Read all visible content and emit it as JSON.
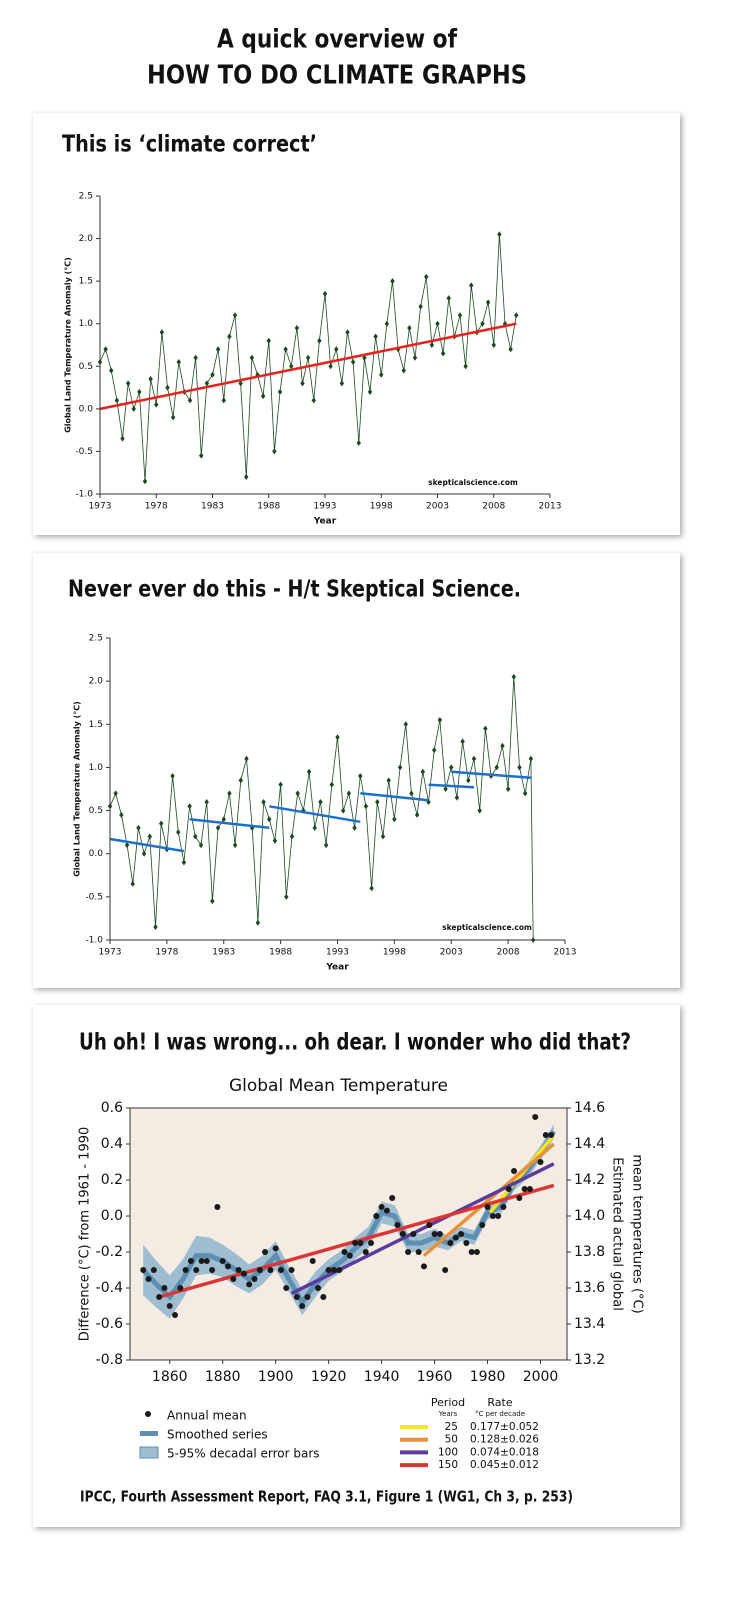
{
  "header": {
    "line1": "A quick overview of",
    "line2": "HOW TO DO CLIMATE GRAPHS"
  },
  "panel_captions": [
    "This is ‘climate correct’",
    "Never ever do this - H/t Skeptical Science.",
    "Uh oh! I was wrong... oh dear. I wonder who did that?"
  ],
  "citation": "IPCC, Fourth Assessment Report, FAQ 3.1, Figure 1 (WG1, Ch 3, p. 253)",
  "chart_data": [
    {
      "type": "line",
      "xlabel": "Year",
      "ylabel": "Global Land Temperature Anomaly (°C)",
      "annotation": "skepticalscience.com",
      "xlim": [
        1973,
        2013
      ],
      "xticks": [
        1973,
        1978,
        1983,
        1988,
        1993,
        1998,
        2003,
        2008,
        2013
      ],
      "ylim": [
        -1.0,
        2.5
      ],
      "yticks": [
        {
          "value": -1.0,
          "label": "-1.0"
        },
        -0.5,
        {
          "value": 0,
          "label": "0.0"
        },
        0.5,
        {
          "value": 1.0,
          "label": "1.0"
        },
        1.5,
        {
          "value": 2.0,
          "label": "2.0"
        },
        2.5
      ],
      "x": [
        1973,
        1973.5,
        1974,
        1974.5,
        1975,
        1975.5,
        1976,
        1976.5,
        1977,
        1977.5,
        1978,
        1978.5,
        1979,
        1979.5,
        1980,
        1980.5,
        1981,
        1981.5,
        1982,
        1982.5,
        1983,
        1983.5,
        1984,
        1984.5,
        1985,
        1985.5,
        1986,
        1986.5,
        1987,
        1987.5,
        1988,
        1988.5,
        1989,
        1989.5,
        1990,
        1990.5,
        1991,
        1991.5,
        1992,
        1992.5,
        1993,
        1993.5,
        1994,
        1994.5,
        1995,
        1995.5,
        1996,
        1996.5,
        1997,
        1997.5,
        1998,
        1998.5,
        1999,
        1999.5,
        2000,
        2000.5,
        2001,
        2001.5,
        2002,
        2002.5,
        2003,
        2003.5,
        2004,
        2004.5,
        2005,
        2005.5,
        2006,
        2006.5,
        2007,
        2007.5,
        2008,
        2008.5,
        2009,
        2009.5,
        2010
      ],
      "series": [
        {
          "style": "markers-line",
          "color": "#1c4a1f",
          "values": [
            0.55,
            0.7,
            0.45,
            0.1,
            -0.35,
            0.3,
            0.0,
            0.2,
            -0.85,
            0.35,
            0.05,
            0.9,
            0.25,
            -0.1,
            0.55,
            0.2,
            0.1,
            0.6,
            -0.55,
            0.3,
            0.4,
            0.7,
            0.1,
            0.85,
            1.1,
            0.3,
            -0.8,
            0.6,
            0.4,
            0.15,
            0.8,
            -0.5,
            0.2,
            0.7,
            0.5,
            0.95,
            0.3,
            0.6,
            0.1,
            0.8,
            1.35,
            0.5,
            0.7,
            0.3,
            0.9,
            0.55,
            -0.4,
            0.6,
            0.2,
            0.85,
            0.4,
            1.0,
            1.5,
            0.7,
            0.45,
            0.95,
            0.6,
            1.2,
            1.55,
            0.75,
            1.0,
            0.65,
            1.3,
            0.85,
            1.1,
            0.5,
            1.45,
            0.9,
            1.0,
            1.25,
            0.75,
            2.05,
            1.0,
            0.7,
            1.1
          ]
        }
      ],
      "trend_lines": [
        {
          "color": "#e8211b",
          "x": [
            1973,
            2010
          ],
          "values": [
            0.0,
            1.0
          ]
        }
      ]
    },
    {
      "type": "line",
      "xlabel": "Year",
      "ylabel": "Global Land Temperature Anomaly (°C)",
      "annotation": "skepticalscience.com",
      "xlim": [
        1973,
        2013
      ],
      "xticks": [
        1973,
        1978,
        1983,
        1988,
        1993,
        1998,
        2003,
        2008,
        2013
      ],
      "ylim": [
        -1.0,
        2.5
      ],
      "yticks": [
        {
          "value": -1.0,
          "label": "-1.0"
        },
        -0.5,
        {
          "value": 0,
          "label": "0.0"
        },
        0.5,
        {
          "value": 1.0,
          "label": "1.0"
        },
        1.5,
        {
          "value": 2.0,
          "label": "2.0"
        },
        2.5
      ],
      "x": [
        1973,
        1973.5,
        1974,
        1974.5,
        1975,
        1975.5,
        1976,
        1976.5,
        1977,
        1977.5,
        1978,
        1978.5,
        1979,
        1979.5,
        1980,
        1980.5,
        1981,
        1981.5,
        1982,
        1982.5,
        1983,
        1983.5,
        1984,
        1984.5,
        1985,
        1985.5,
        1986,
        1986.5,
        1987,
        1987.5,
        1988,
        1988.5,
        1989,
        1989.5,
        1990,
        1990.5,
        1991,
        1991.5,
        1992,
        1992.5,
        1993,
        1993.5,
        1994,
        1994.5,
        1995,
        1995.5,
        1996,
        1996.5,
        1997,
        1997.5,
        1998,
        1998.5,
        1999,
        1999.5,
        2000,
        2000.5,
        2001,
        2001.5,
        2002,
        2002.5,
        2003,
        2003.5,
        2004,
        2004.5,
        2005,
        2005.5,
        2006,
        2006.5,
        2007,
        2007.5,
        2008,
        2008.5,
        2009,
        2009.5,
        2010,
        2010.2
      ],
      "series": [
        {
          "style": "markers-line",
          "color": "#1c4a1f",
          "values": [
            0.55,
            0.7,
            0.45,
            0.1,
            -0.35,
            0.3,
            0.0,
            0.2,
            -0.85,
            0.35,
            0.05,
            0.9,
            0.25,
            -0.1,
            0.55,
            0.2,
            0.1,
            0.6,
            -0.55,
            0.3,
            0.4,
            0.7,
            0.1,
            0.85,
            1.1,
            0.3,
            -0.8,
            0.6,
            0.4,
            0.15,
            0.8,
            -0.5,
            0.2,
            0.7,
            0.5,
            0.95,
            0.3,
            0.6,
            0.1,
            0.8,
            1.35,
            0.5,
            0.7,
            0.3,
            0.9,
            0.55,
            -0.4,
            0.6,
            0.2,
            0.85,
            0.4,
            1.0,
            1.5,
            0.7,
            0.45,
            0.95,
            0.6,
            1.2,
            1.55,
            0.75,
            1.0,
            0.65,
            1.3,
            0.85,
            1.1,
            0.5,
            1.45,
            0.9,
            1.0,
            1.25,
            0.75,
            2.05,
            1.0,
            0.7,
            1.1,
            -1.0
          ]
        }
      ],
      "trend_lines": [
        {
          "color": "#1f6fc9",
          "x": [
            1973,
            1979.5
          ],
          "values": [
            0.17,
            0.03
          ]
        },
        {
          "color": "#1f6fc9",
          "x": [
            1980,
            1987
          ],
          "values": [
            0.4,
            0.3
          ]
        },
        {
          "color": "#1f6fc9",
          "x": [
            1987,
            1995
          ],
          "values": [
            0.55,
            0.37
          ]
        },
        {
          "color": "#1f6fc9",
          "x": [
            1995,
            2001
          ],
          "values": [
            0.7,
            0.62
          ]
        },
        {
          "color": "#1f6fc9",
          "x": [
            2001,
            2005
          ],
          "values": [
            0.8,
            0.77
          ]
        },
        {
          "color": "#1f6fc9",
          "x": [
            2003,
            2010
          ],
          "values": [
            0.95,
            0.88
          ]
        }
      ]
    },
    {
      "type": "line",
      "title": "Global Mean Temperature",
      "ylabel": "Difference (°C) from 1961 - 1990",
      "y2label": [
        "Estimated actual global",
        "mean temperatures (°C)"
      ],
      "plot_background": "#f4ebe3",
      "frame": true,
      "xlim": [
        1845,
        2010
      ],
      "xticks": [
        1860,
        1880,
        1900,
        1920,
        1940,
        1960,
        1980,
        2000
      ],
      "ylim": [
        -0.8,
        0.6
      ],
      "yticks": [
        -0.8,
        -0.6,
        -0.4,
        -0.2,
        {
          "value": 0,
          "label": "0.0"
        },
        0.2,
        0.4,
        0.6
      ],
      "y2lim": [
        13.2,
        14.6
      ],
      "y2ticks": [
        13.2,
        13.4,
        13.6,
        13.8,
        {
          "value": 14.0,
          "label": "14.0"
        },
        14.2,
        14.4,
        14.6
      ],
      "series": [
        {
          "name": "Annual mean",
          "style": "dots",
          "color": "#1a1a1a",
          "x": [
            1850,
            1852,
            1854,
            1856,
            1858,
            1860,
            1862,
            1864,
            1866,
            1868,
            1870,
            1872,
            1874,
            1876,
            1878,
            1880,
            1882,
            1884,
            1886,
            1888,
            1890,
            1892,
            1894,
            1896,
            1898,
            1900,
            1902,
            1904,
            1906,
            1908,
            1910,
            1912,
            1914,
            1916,
            1918,
            1920,
            1922,
            1924,
            1926,
            1928,
            1930,
            1932,
            1934,
            1936,
            1938,
            1940,
            1942,
            1944,
            1946,
            1948,
            1950,
            1952,
            1954,
            1956,
            1958,
            1960,
            1962,
            1964,
            1966,
            1968,
            1970,
            1972,
            1974,
            1976,
            1978,
            1980,
            1982,
            1984,
            1986,
            1988,
            1990,
            1992,
            1994,
            1996,
            1998,
            2000,
            2002,
            2004
          ],
          "values": [
            -0.3,
            -0.35,
            -0.3,
            -0.45,
            -0.4,
            -0.5,
            -0.55,
            -0.4,
            -0.3,
            -0.25,
            -0.3,
            -0.25,
            -0.25,
            -0.3,
            0.05,
            -0.25,
            -0.28,
            -0.35,
            -0.3,
            -0.32,
            -0.38,
            -0.35,
            -0.3,
            -0.2,
            -0.3,
            -0.18,
            -0.3,
            -0.4,
            -0.3,
            -0.45,
            -0.5,
            -0.45,
            -0.25,
            -0.4,
            -0.45,
            -0.3,
            -0.3,
            -0.3,
            -0.2,
            -0.22,
            -0.15,
            -0.15,
            -0.2,
            -0.15,
            0.0,
            0.05,
            0.03,
            0.1,
            -0.05,
            -0.1,
            -0.2,
            -0.1,
            -0.2,
            -0.28,
            -0.05,
            -0.1,
            -0.1,
            -0.3,
            -0.15,
            -0.12,
            -0.1,
            -0.15,
            -0.2,
            -0.2,
            -0.05,
            0.05,
            0.0,
            0.0,
            0.05,
            0.15,
            0.25,
            0.1,
            0.15,
            0.15,
            0.55,
            0.3,
            0.45,
            0.45
          ]
        },
        {
          "name": "Smoothed series",
          "style": "line",
          "color": "#5d8fb3",
          "x": [
            1850,
            1855,
            1860,
            1865,
            1870,
            1875,
            1880,
            1885,
            1890,
            1895,
            1900,
            1905,
            1910,
            1915,
            1920,
            1925,
            1930,
            1935,
            1940,
            1945,
            1950,
            1955,
            1960,
            1965,
            1970,
            1975,
            1980,
            1985,
            1990,
            1995,
            2000,
            2005
          ],
          "values": [
            -0.3,
            -0.38,
            -0.45,
            -0.35,
            -0.22,
            -0.22,
            -0.25,
            -0.3,
            -0.35,
            -0.3,
            -0.22,
            -0.35,
            -0.48,
            -0.38,
            -0.3,
            -0.25,
            -0.18,
            -0.12,
            0.02,
            0.0,
            -0.15,
            -0.15,
            -0.12,
            -0.15,
            -0.1,
            -0.12,
            0.02,
            0.05,
            0.18,
            0.25,
            0.35,
            0.47
          ]
        },
        {
          "name": "5-95% decadal error bars",
          "style": "band",
          "color": "#9ebdd1",
          "x": [
            1850,
            1855,
            1860,
            1865,
            1870,
            1875,
            1880,
            1885,
            1890,
            1895,
            1900,
            1905,
            1910,
            1915,
            1920,
            1925,
            1930,
            1935,
            1940,
            1945,
            1950,
            1955,
            1960,
            1965,
            1970,
            1975,
            1980,
            1985,
            1990,
            1995,
            2000,
            2005
          ],
          "lower": [
            -0.44,
            -0.51,
            -0.57,
            -0.46,
            -0.33,
            -0.32,
            -0.34,
            -0.39,
            -0.43,
            -0.38,
            -0.3,
            -0.42,
            -0.55,
            -0.45,
            -0.36,
            -0.31,
            -0.24,
            -0.18,
            -0.04,
            -0.06,
            -0.2,
            -0.2,
            -0.17,
            -0.19,
            -0.14,
            -0.16,
            -0.02,
            0.01,
            0.14,
            0.21,
            0.31,
            0.43
          ],
          "upper": [
            -0.16,
            -0.25,
            -0.33,
            -0.24,
            -0.11,
            -0.12,
            -0.16,
            -0.21,
            -0.27,
            -0.22,
            -0.14,
            -0.28,
            -0.41,
            -0.31,
            -0.24,
            -0.19,
            -0.12,
            -0.06,
            0.08,
            0.06,
            -0.1,
            -0.1,
            -0.07,
            -0.11,
            -0.06,
            -0.08,
            0.06,
            0.09,
            0.22,
            0.29,
            0.39,
            0.51
          ]
        }
      ],
      "rate_table": {
        "period_header": "Period",
        "period_unit": "Years",
        "rate_header": "Rate",
        "rate_unit": "°C per decade"
      },
      "trend_lines": [
        {
          "period": "25",
          "rate": "0.177±0.052",
          "color": "#f7e61c",
          "x": [
            1981,
            2005
          ],
          "values": [
            0.02,
            0.45
          ]
        },
        {
          "period": "50",
          "rate": "0.128±0.026",
          "color": "#e8913a",
          "x": [
            1956,
            2005
          ],
          "values": [
            -0.22,
            0.4
          ]
        },
        {
          "period": "100",
          "rate": "0.074±0.018",
          "color": "#5b3b9e",
          "x": [
            1906,
            2005
          ],
          "values": [
            -0.43,
            0.29
          ]
        },
        {
          "period": "150",
          "rate": "0.045±0.012",
          "color": "#dd3535",
          "x": [
            1856,
            2005
          ],
          "values": [
            -0.45,
            0.17
          ]
        }
      ]
    }
  ]
}
